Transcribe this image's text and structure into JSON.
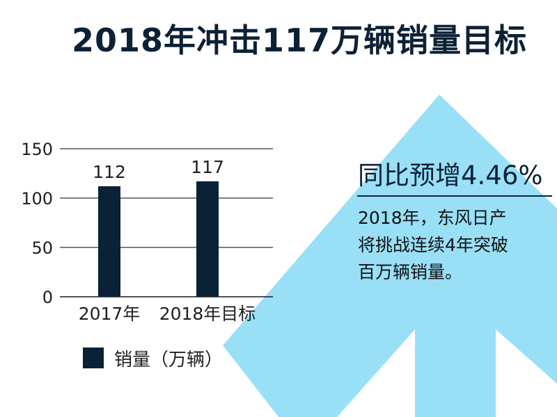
{
  "title": "2018年冲击117万辆销量目标",
  "callout": {
    "headline": "同比预增4.46%",
    "body_lines": [
      "2018年，东风日产",
      "将挑战连续4年突破",
      "百万辆销量。"
    ]
  },
  "colors": {
    "bar": "#0b2138",
    "arrow": "#99e0f7",
    "title": "#0d2136"
  },
  "chart_data": {
    "type": "bar",
    "categories": [
      "2017年",
      "2018年目标"
    ],
    "series": [
      {
        "name": "销量（万辆）",
        "values": [
          112,
          117
        ]
      }
    ],
    "data_labels": [
      "112",
      "117"
    ],
    "ylim": [
      0,
      150
    ],
    "yticks": [
      0,
      50,
      100,
      150
    ],
    "ytick_labels": [
      "0",
      "50",
      "100",
      "150"
    ],
    "grid": true,
    "legend": "bottom-left",
    "legend_label": "销量（万辆）"
  }
}
